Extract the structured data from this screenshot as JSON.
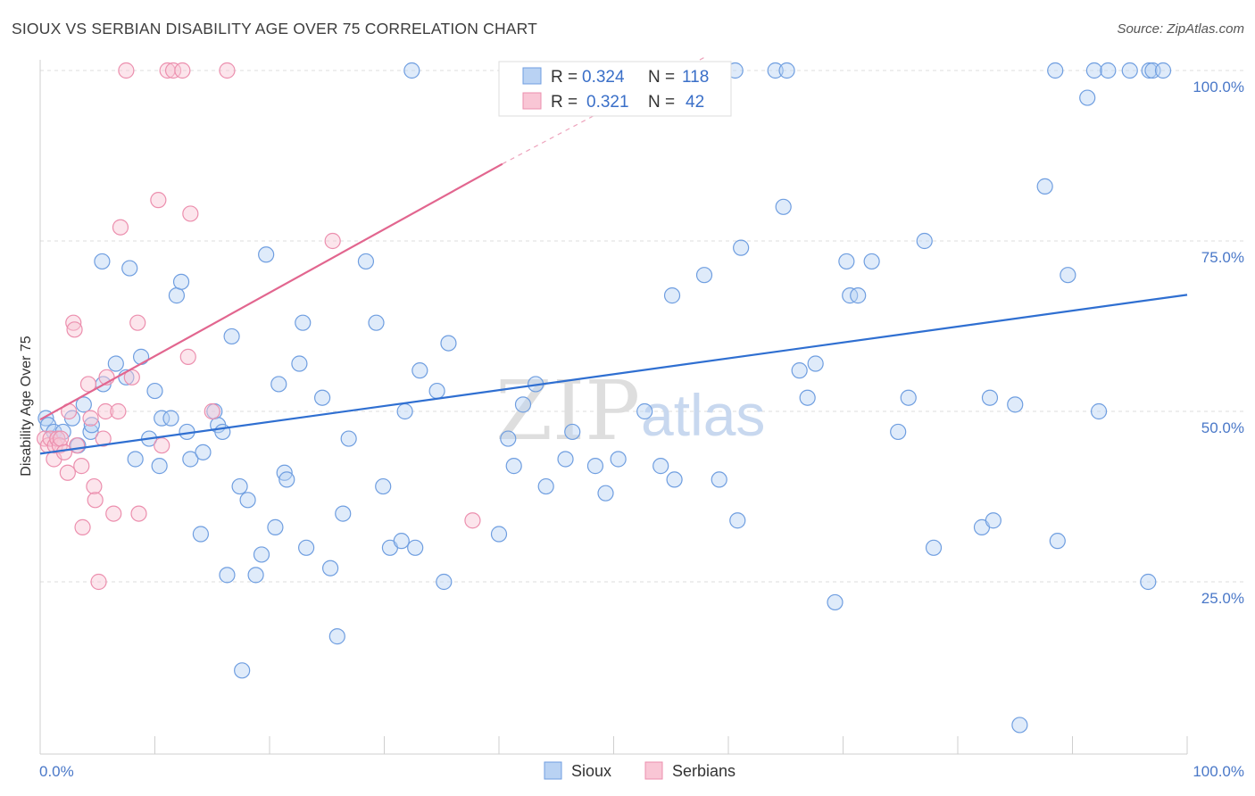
{
  "chart_data": {
    "type": "scatter",
    "title": "SIOUX VS SERBIAN DISABILITY AGE OVER 75 CORRELATION CHART",
    "source": "Source: ZipAtlas.com",
    "xlabel": "",
    "ylabel": "Disability Age Over 75",
    "xlim": [
      0,
      100
    ],
    "ylim": [
      0,
      102
    ],
    "x_tick_labels": [
      "0.0%",
      "100.0%"
    ],
    "y_tick_labels": [
      {
        "value": 25,
        "label": "25.0%"
      },
      {
        "value": 50,
        "label": "50.0%"
      },
      {
        "value": 75,
        "label": "75.0%"
      },
      {
        "value": 100,
        "label": "100.0%"
      }
    ],
    "watermark": {
      "zip": "ZIP",
      "atlas": "atlas"
    },
    "legend": {
      "r_label": "R =",
      "n_label": "N =",
      "entries": [
        {
          "name": "Sioux",
          "r": "0.324",
          "n": "118",
          "color": "#6f9ee0"
        },
        {
          "name": "Serbians",
          "r": "0.321",
          "n": "42",
          "color": "#ec8fae"
        }
      ]
    },
    "series": [
      {
        "name": "Sioux",
        "color": "#6f9ee0",
        "trend": {
          "x0": 0,
          "y0": 43.8,
          "x1": 100,
          "y1": 67.1
        },
        "points": [
          [
            0.5,
            49
          ],
          [
            0.7,
            48
          ],
          [
            1.2,
            47
          ],
          [
            1.5,
            46
          ],
          [
            2,
            47
          ],
          [
            2.8,
            49
          ],
          [
            3.3,
            45
          ],
          [
            3.8,
            51
          ],
          [
            4.4,
            47
          ],
          [
            4.5,
            48
          ],
          [
            5.5,
            54
          ],
          [
            5.4,
            72
          ],
          [
            6.6,
            57
          ],
          [
            7.5,
            55
          ],
          [
            7.8,
            71
          ],
          [
            8.3,
            43
          ],
          [
            8.8,
            58
          ],
          [
            9.5,
            46
          ],
          [
            10,
            53
          ],
          [
            10.4,
            42
          ],
          [
            10.6,
            49
          ],
          [
            11.4,
            49
          ],
          [
            11.9,
            67
          ],
          [
            12.3,
            69
          ],
          [
            12.8,
            47
          ],
          [
            13.1,
            43
          ],
          [
            14,
            32
          ],
          [
            14.2,
            44
          ],
          [
            15.2,
            50
          ],
          [
            15.5,
            48
          ],
          [
            15.9,
            47
          ],
          [
            16.3,
            26
          ],
          [
            16.7,
            61
          ],
          [
            17.4,
            39
          ],
          [
            17.6,
            12
          ],
          [
            18.1,
            37
          ],
          [
            18.8,
            26
          ],
          [
            19.3,
            29
          ],
          [
            19.7,
            73
          ],
          [
            20.5,
            33
          ],
          [
            20.8,
            54
          ],
          [
            21.3,
            41
          ],
          [
            21.5,
            40
          ],
          [
            22.6,
            57
          ],
          [
            22.9,
            63
          ],
          [
            23.2,
            30
          ],
          [
            24.6,
            52
          ],
          [
            25.3,
            27
          ],
          [
            25.9,
            17
          ],
          [
            26.4,
            35
          ],
          [
            26.9,
            46
          ],
          [
            28.4,
            72
          ],
          [
            29.3,
            63
          ],
          [
            29.9,
            39
          ],
          [
            30.5,
            30
          ],
          [
            31.5,
            31
          ],
          [
            31.8,
            50
          ],
          [
            32.4,
            100
          ],
          [
            32.7,
            30
          ],
          [
            33.1,
            56
          ],
          [
            34.6,
            53
          ],
          [
            35.2,
            25
          ],
          [
            35.6,
            60
          ],
          [
            40,
            32
          ],
          [
            40.8,
            46
          ],
          [
            41.3,
            42
          ],
          [
            42.1,
            51
          ],
          [
            43.2,
            54
          ],
          [
            44.1,
            39
          ],
          [
            45.8,
            43
          ],
          [
            46.4,
            47
          ],
          [
            48.4,
            42
          ],
          [
            49.3,
            38
          ],
          [
            50.4,
            43
          ],
          [
            52.7,
            50
          ],
          [
            54.1,
            42
          ],
          [
            55.1,
            67
          ],
          [
            55.3,
            40
          ],
          [
            57.9,
            70
          ],
          [
            59.2,
            40
          ],
          [
            60.6,
            100
          ],
          [
            60.8,
            34
          ],
          [
            61.1,
            74
          ],
          [
            64.1,
            100
          ],
          [
            64.8,
            80
          ],
          [
            65.1,
            100
          ],
          [
            66.2,
            56
          ],
          [
            66.9,
            52
          ],
          [
            67.6,
            57
          ],
          [
            69.3,
            22
          ],
          [
            70.3,
            72
          ],
          [
            70.6,
            67
          ],
          [
            71.3,
            67
          ],
          [
            72.5,
            72
          ],
          [
            74.8,
            47
          ],
          [
            75.7,
            52
          ],
          [
            77.1,
            75
          ],
          [
            77.9,
            30
          ],
          [
            82.1,
            33
          ],
          [
            82.8,
            52
          ],
          [
            83.1,
            34
          ],
          [
            85,
            51
          ],
          [
            85.4,
            4
          ],
          [
            87.6,
            83
          ],
          [
            88.5,
            100
          ],
          [
            88.7,
            31
          ],
          [
            89.6,
            70
          ],
          [
            91.3,
            96
          ],
          [
            91.9,
            100
          ],
          [
            92.3,
            50
          ],
          [
            93.1,
            100
          ],
          [
            95,
            100
          ],
          [
            96.6,
            25
          ],
          [
            96.7,
            100
          ],
          [
            97,
            100
          ],
          [
            97.9,
            100
          ]
        ]
      },
      {
        "name": "Serbians",
        "color": "#ec8fae",
        "trend": {
          "x0": 0,
          "y0": 48.8,
          "x1": 40.3,
          "y1": 86.3
        },
        "trend_dashed_to": {
          "x": 58,
          "y": 102
        },
        "points": [
          [
            0.4,
            46
          ],
          [
            0.7,
            45
          ],
          [
            0.9,
            46
          ],
          [
            1.2,
            43
          ],
          [
            1.3,
            45
          ],
          [
            1.5,
            46
          ],
          [
            1.7,
            45
          ],
          [
            1.8,
            46
          ],
          [
            2.1,
            44
          ],
          [
            2.4,
            41
          ],
          [
            2.5,
            50
          ],
          [
            2.9,
            63
          ],
          [
            3,
            62
          ],
          [
            3.2,
            45
          ],
          [
            3.6,
            42
          ],
          [
            3.7,
            33
          ],
          [
            4.2,
            54
          ],
          [
            4.4,
            49
          ],
          [
            4.7,
            39
          ],
          [
            4.8,
            37
          ],
          [
            5.1,
            25
          ],
          [
            5.5,
            46
          ],
          [
            5.7,
            50
          ],
          [
            5.8,
            55
          ],
          [
            6.4,
            35
          ],
          [
            6.8,
            50
          ],
          [
            7,
            77
          ],
          [
            7.5,
            100
          ],
          [
            8,
            55
          ],
          [
            8.5,
            63
          ],
          [
            8.6,
            35
          ],
          [
            10.3,
            81
          ],
          [
            11.1,
            100
          ],
          [
            11.6,
            100
          ],
          [
            12.4,
            100
          ],
          [
            12.9,
            58
          ],
          [
            13.1,
            79
          ],
          [
            15,
            50
          ],
          [
            16.3,
            100
          ],
          [
            25.5,
            75
          ],
          [
            37.7,
            34
          ],
          [
            10.6,
            45
          ]
        ]
      }
    ]
  }
}
